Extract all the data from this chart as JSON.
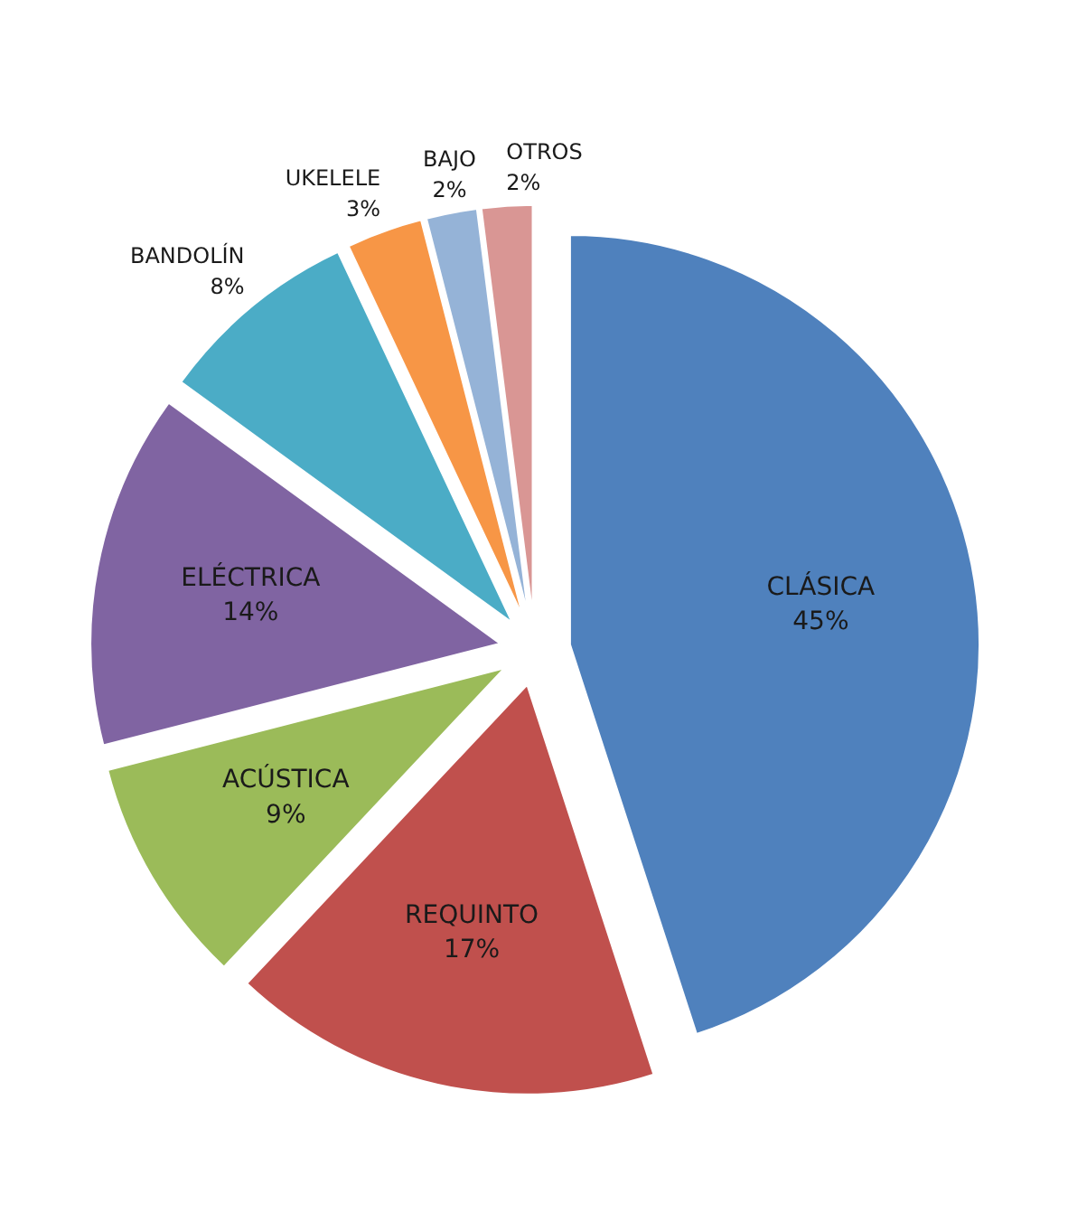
{
  "chart_data": {
    "type": "pie",
    "categories": [
      "CLÁSICA",
      "REQUINTO",
      "ACÚSTICA",
      "ELÉCTRICA",
      "BANDOLÍN",
      "UKELELE",
      "BAJO",
      "OTROS"
    ],
    "values": [
      45,
      17,
      9,
      14,
      8,
      3,
      2,
      2
    ],
    "colors": [
      "#4f81bd",
      "#c0504d",
      "#9bbb59",
      "#8064a2",
      "#4bacc6",
      "#f79646",
      "#95b3d7",
      "#d99694"
    ],
    "value_labels": [
      "45%",
      "17%",
      "9%",
      "14%",
      "8%",
      "3%",
      "2%",
      "2%"
    ]
  }
}
